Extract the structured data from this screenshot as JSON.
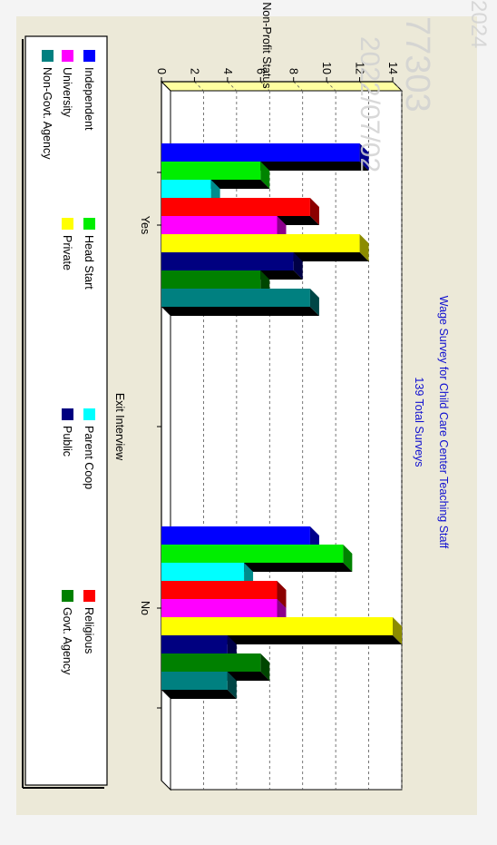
{
  "chart_data": {
    "type": "bar",
    "title": "Wage Survey for Child Care Center Teaching Staff",
    "subtitle": "139 Total Surveys",
    "xlabel": "Exit Interview",
    "ylabel": "Non-Profit Status",
    "categories": [
      "Yes",
      "No"
    ],
    "ylim": [
      0,
      14
    ],
    "yticks": [
      "0",
      "2",
      "4",
      "6",
      "8",
      "10",
      "12",
      "14"
    ],
    "grid": true,
    "legend_position": "bottom",
    "orientation": "rotated-90-clockwise",
    "series": [
      {
        "name": "Independent",
        "color": "#0000ff",
        "values": [
          12,
          9
        ]
      },
      {
        "name": "Head Start",
        "color": "#00ee00",
        "values": [
          6,
          11
        ]
      },
      {
        "name": "Parent Coop",
        "color": "#00ffff",
        "values": [
          3,
          5
        ]
      },
      {
        "name": "Religious",
        "color": "#ff0000",
        "values": [
          9,
          7
        ]
      },
      {
        "name": "University",
        "color": "#ff00ff",
        "values": [
          7,
          7
        ]
      },
      {
        "name": "Private",
        "color": "#ffff00",
        "values": [
          12,
          14
        ]
      },
      {
        "name": "Public",
        "color": "#000080",
        "values": [
          8,
          4
        ]
      },
      {
        "name": "Govt. Agency",
        "color": "#008000",
        "values": [
          6,
          6
        ]
      },
      {
        "name": "Non-Govt. Agency",
        "color": "#008080",
        "values": [
          9,
          4
        ]
      }
    ]
  },
  "watermark": {
    "lines": [
      "77303",
      "2022/07/02",
      "2024"
    ]
  }
}
